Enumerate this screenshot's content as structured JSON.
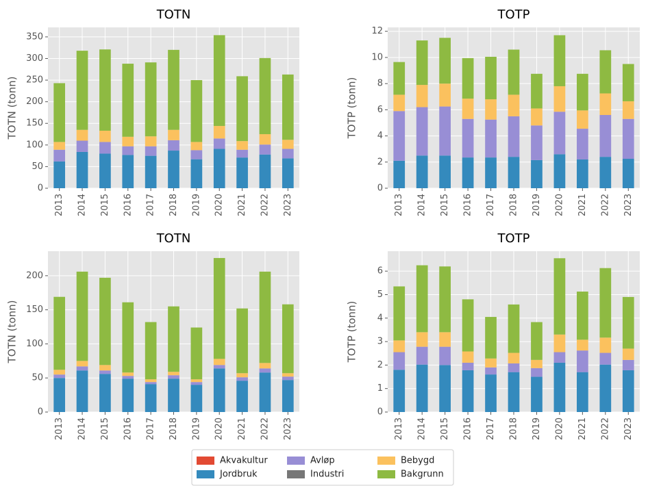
{
  "chart_data": [
    {
      "type": "stacked-bar",
      "title": "TOTN",
      "ylabel": "TOTN (tonn)",
      "categories": [
        "2013",
        "2014",
        "2015",
        "2016",
        "2017",
        "2018",
        "2019",
        "2020",
        "2021",
        "2022",
        "2023"
      ],
      "ylim": [
        0,
        372
      ],
      "yticks": [
        0,
        50,
        100,
        150,
        200,
        250,
        300,
        350
      ],
      "grid": true,
      "series": [
        {
          "name": "Akvakultur",
          "color": "#e24a33",
          "values": [
            0,
            0,
            0,
            0,
            0,
            0,
            0,
            0,
            0,
            0,
            0
          ]
        },
        {
          "name": "Jordbruk",
          "color": "#348abd",
          "values": [
            62,
            84,
            80,
            77,
            75,
            87,
            67,
            91,
            71,
            78,
            69
          ]
        },
        {
          "name": "Avløp",
          "color": "#988ed5",
          "values": [
            27,
            26,
            27,
            20,
            22,
            24,
            21,
            24,
            18,
            23,
            22
          ]
        },
        {
          "name": "Industri",
          "color": "#777777",
          "values": [
            0,
            0,
            0,
            0,
            0,
            0,
            0,
            0,
            0,
            0,
            0
          ]
        },
        {
          "name": "Bebygd",
          "color": "#fbc15e",
          "values": [
            18,
            25,
            26,
            22,
            23,
            24,
            19,
            29,
            20,
            24,
            21
          ]
        },
        {
          "name": "Bakgrunn",
          "color": "#8eba42",
          "values": [
            136,
            183,
            188,
            169,
            171,
            185,
            143,
            210,
            150,
            176,
            151
          ]
        }
      ]
    },
    {
      "type": "stacked-bar",
      "title": "TOTP",
      "ylabel": "TOTP (tonn)",
      "categories": [
        "2013",
        "2014",
        "2015",
        "2016",
        "2017",
        "2018",
        "2019",
        "2020",
        "2021",
        "2022",
        "2023"
      ],
      "ylim": [
        0,
        12.3
      ],
      "yticks": [
        0,
        2,
        4,
        6,
        8,
        10,
        12
      ],
      "grid": true,
      "series": [
        {
          "name": "Akvakultur",
          "color": "#e24a33",
          "values": [
            0,
            0,
            0,
            0,
            0,
            0,
            0,
            0,
            0,
            0,
            0
          ]
        },
        {
          "name": "Jordbruk",
          "color": "#348abd",
          "values": [
            2.1,
            2.5,
            2.5,
            2.35,
            2.35,
            2.4,
            2.15,
            2.6,
            2.2,
            2.4,
            2.25
          ]
        },
        {
          "name": "Avløp",
          "color": "#988ed5",
          "values": [
            3.8,
            3.7,
            3.75,
            2.95,
            2.9,
            3.1,
            2.65,
            3.25,
            2.35,
            3.2,
            3.05
          ]
        },
        {
          "name": "Industri",
          "color": "#777777",
          "values": [
            0,
            0,
            0,
            0,
            0,
            0,
            0,
            0,
            0,
            0,
            0
          ]
        },
        {
          "name": "Bebygd",
          "color": "#fbc15e",
          "values": [
            1.25,
            1.7,
            1.75,
            1.55,
            1.55,
            1.65,
            1.3,
            1.95,
            1.4,
            1.65,
            1.35
          ]
        },
        {
          "name": "Bakgrunn",
          "color": "#8eba42",
          "values": [
            2.5,
            3.4,
            3.5,
            3.1,
            3.25,
            3.45,
            2.65,
            3.9,
            2.8,
            3.3,
            2.85
          ]
        }
      ]
    },
    {
      "type": "stacked-bar",
      "title": "TOTN",
      "ylabel": "TOTN (tonn)",
      "categories": [
        "2013",
        "2014",
        "2015",
        "2016",
        "2017",
        "2018",
        "2019",
        "2020",
        "2021",
        "2022",
        "2023"
      ],
      "ylim": [
        0,
        236
      ],
      "yticks": [
        0,
        50,
        100,
        150,
        200
      ],
      "grid": true,
      "series": [
        {
          "name": "Akvakultur",
          "color": "#e24a33",
          "values": [
            0,
            0,
            0,
            0,
            0,
            0,
            0,
            0,
            0,
            0,
            0
          ]
        },
        {
          "name": "Jordbruk",
          "color": "#348abd",
          "values": [
            50,
            61,
            56,
            49,
            41,
            49,
            40,
            64,
            46,
            58,
            47
          ]
        },
        {
          "name": "Avløp",
          "color": "#988ed5",
          "values": [
            5,
            6,
            5,
            4,
            3,
            5,
            4,
            5,
            5,
            6,
            5
          ]
        },
        {
          "name": "Industri",
          "color": "#777777",
          "values": [
            0,
            0,
            0,
            0,
            0,
            0,
            0,
            0,
            0,
            0,
            0
          ]
        },
        {
          "name": "Bebygd",
          "color": "#fbc15e",
          "values": [
            7,
            8,
            8,
            5,
            4,
            5,
            4,
            9,
            6,
            8,
            5
          ]
        },
        {
          "name": "Bakgrunn",
          "color": "#8eba42",
          "values": [
            107,
            131,
            128,
            103,
            84,
            96,
            76,
            148,
            95,
            134,
            101
          ]
        }
      ]
    },
    {
      "type": "stacked-bar",
      "title": "TOTP",
      "ylabel": "TOTP (tonn)",
      "categories": [
        "2013",
        "2014",
        "2015",
        "2016",
        "2017",
        "2018",
        "2019",
        "2020",
        "2021",
        "2022",
        "2023"
      ],
      "ylim": [
        0,
        6.85
      ],
      "yticks": [
        0,
        1,
        2,
        3,
        4,
        5,
        6
      ],
      "grid": true,
      "series": [
        {
          "name": "Akvakultur",
          "color": "#e24a33",
          "values": [
            0,
            0,
            0,
            0,
            0,
            0,
            0,
            0,
            0,
            0,
            0
          ]
        },
        {
          "name": "Jordbruk",
          "color": "#348abd",
          "values": [
            1.8,
            2.02,
            2.0,
            1.78,
            1.6,
            1.7,
            1.5,
            2.1,
            1.7,
            2.02,
            1.78
          ]
        },
        {
          "name": "Avløp",
          "color": "#988ed5",
          "values": [
            0.75,
            0.76,
            0.78,
            0.32,
            0.3,
            0.37,
            0.37,
            0.45,
            0.92,
            0.5,
            0.44
          ]
        },
        {
          "name": "Industri",
          "color": "#777777",
          "values": [
            0,
            0,
            0,
            0,
            0,
            0,
            0,
            0,
            0,
            0,
            0
          ]
        },
        {
          "name": "Bebygd",
          "color": "#fbc15e",
          "values": [
            0.5,
            0.62,
            0.62,
            0.48,
            0.38,
            0.45,
            0.35,
            0.75,
            0.46,
            0.65,
            0.48
          ]
        },
        {
          "name": "Bakgrunn",
          "color": "#8eba42",
          "values": [
            2.3,
            2.85,
            2.8,
            2.22,
            1.77,
            2.06,
            1.61,
            3.25,
            2.05,
            2.96,
            2.2
          ]
        }
      ]
    }
  ]
}
